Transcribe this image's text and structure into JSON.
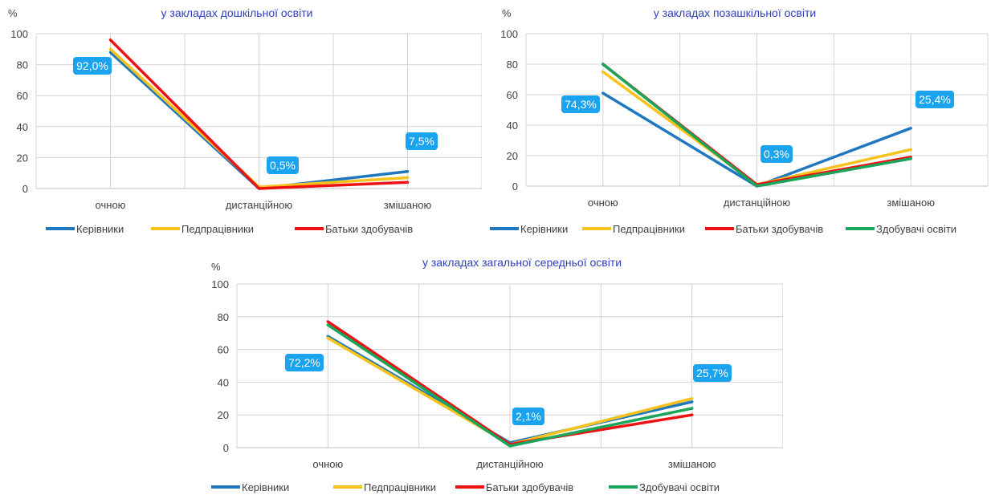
{
  "colors": {
    "series": [
      "#1f77c0",
      "#f7c21b",
      "#ee1111",
      "#1aa55a"
    ],
    "title": "#2f3fbf",
    "grid": "#d4d4d4",
    "label_box": "#1aa3ee"
  },
  "chart_data": [
    {
      "type": "line",
      "title": "у закладах дошкільної освіти",
      "ylabel": "%",
      "categories": [
        "очною",
        "дистанційною",
        "змішаною"
      ],
      "ylim": [
        0,
        100
      ],
      "yticks": [
        0,
        20,
        40,
        60,
        80,
        100
      ],
      "grid": true,
      "legend_position": "bottom",
      "series": [
        {
          "name": "Керівники",
          "values": [
            88,
            0,
            11
          ]
        },
        {
          "name": "Педпрацівники",
          "values": [
            90,
            1,
            7
          ]
        },
        {
          "name": "Батьки здобувачів",
          "values": [
            96,
            0,
            4
          ]
        }
      ],
      "labels": [
        "92,0%",
        "0,5%",
        "7,5%"
      ]
    },
    {
      "type": "line",
      "title": "у  закладах позашкільної освіти",
      "ylabel": "%",
      "categories": [
        "очною",
        "дистанційною",
        "змішаною"
      ],
      "ylim": [
        0,
        100
      ],
      "yticks": [
        0,
        20,
        40,
        60,
        80,
        100
      ],
      "grid": true,
      "legend_position": "bottom",
      "series": [
        {
          "name": "Керівники",
          "values": [
            61,
            0,
            38
          ]
        },
        {
          "name": "Педпрацівники",
          "values": [
            75,
            1,
            24
          ]
        },
        {
          "name": "Батьки здобувачів",
          "values": [
            80,
            1,
            19
          ]
        },
        {
          "name": "Здобувачі освіти",
          "values": [
            80,
            0,
            18
          ]
        }
      ],
      "labels": [
        "74,3%",
        "0,3%",
        "25,4%"
      ]
    },
    {
      "type": "line",
      "title": "у закладах загальної середньої освіти",
      "ylabel": "%",
      "categories": [
        "очною",
        "дистанційною",
        "змішаною"
      ],
      "ylim": [
        0,
        100
      ],
      "yticks": [
        0,
        20,
        40,
        60,
        80,
        100
      ],
      "grid": true,
      "legend_position": "bottom",
      "series": [
        {
          "name": "Керівники",
          "values": [
            68,
            3,
            28
          ]
        },
        {
          "name": "Педпрацівники",
          "values": [
            67,
            2,
            30
          ]
        },
        {
          "name": "Батьки здобувачів",
          "values": [
            77,
            2,
            20
          ]
        },
        {
          "name": "Здобувачі освіти",
          "values": [
            75,
            1,
            24
          ]
        }
      ],
      "labels": [
        "72,2%",
        "2,1%",
        "25,7%"
      ]
    }
  ]
}
